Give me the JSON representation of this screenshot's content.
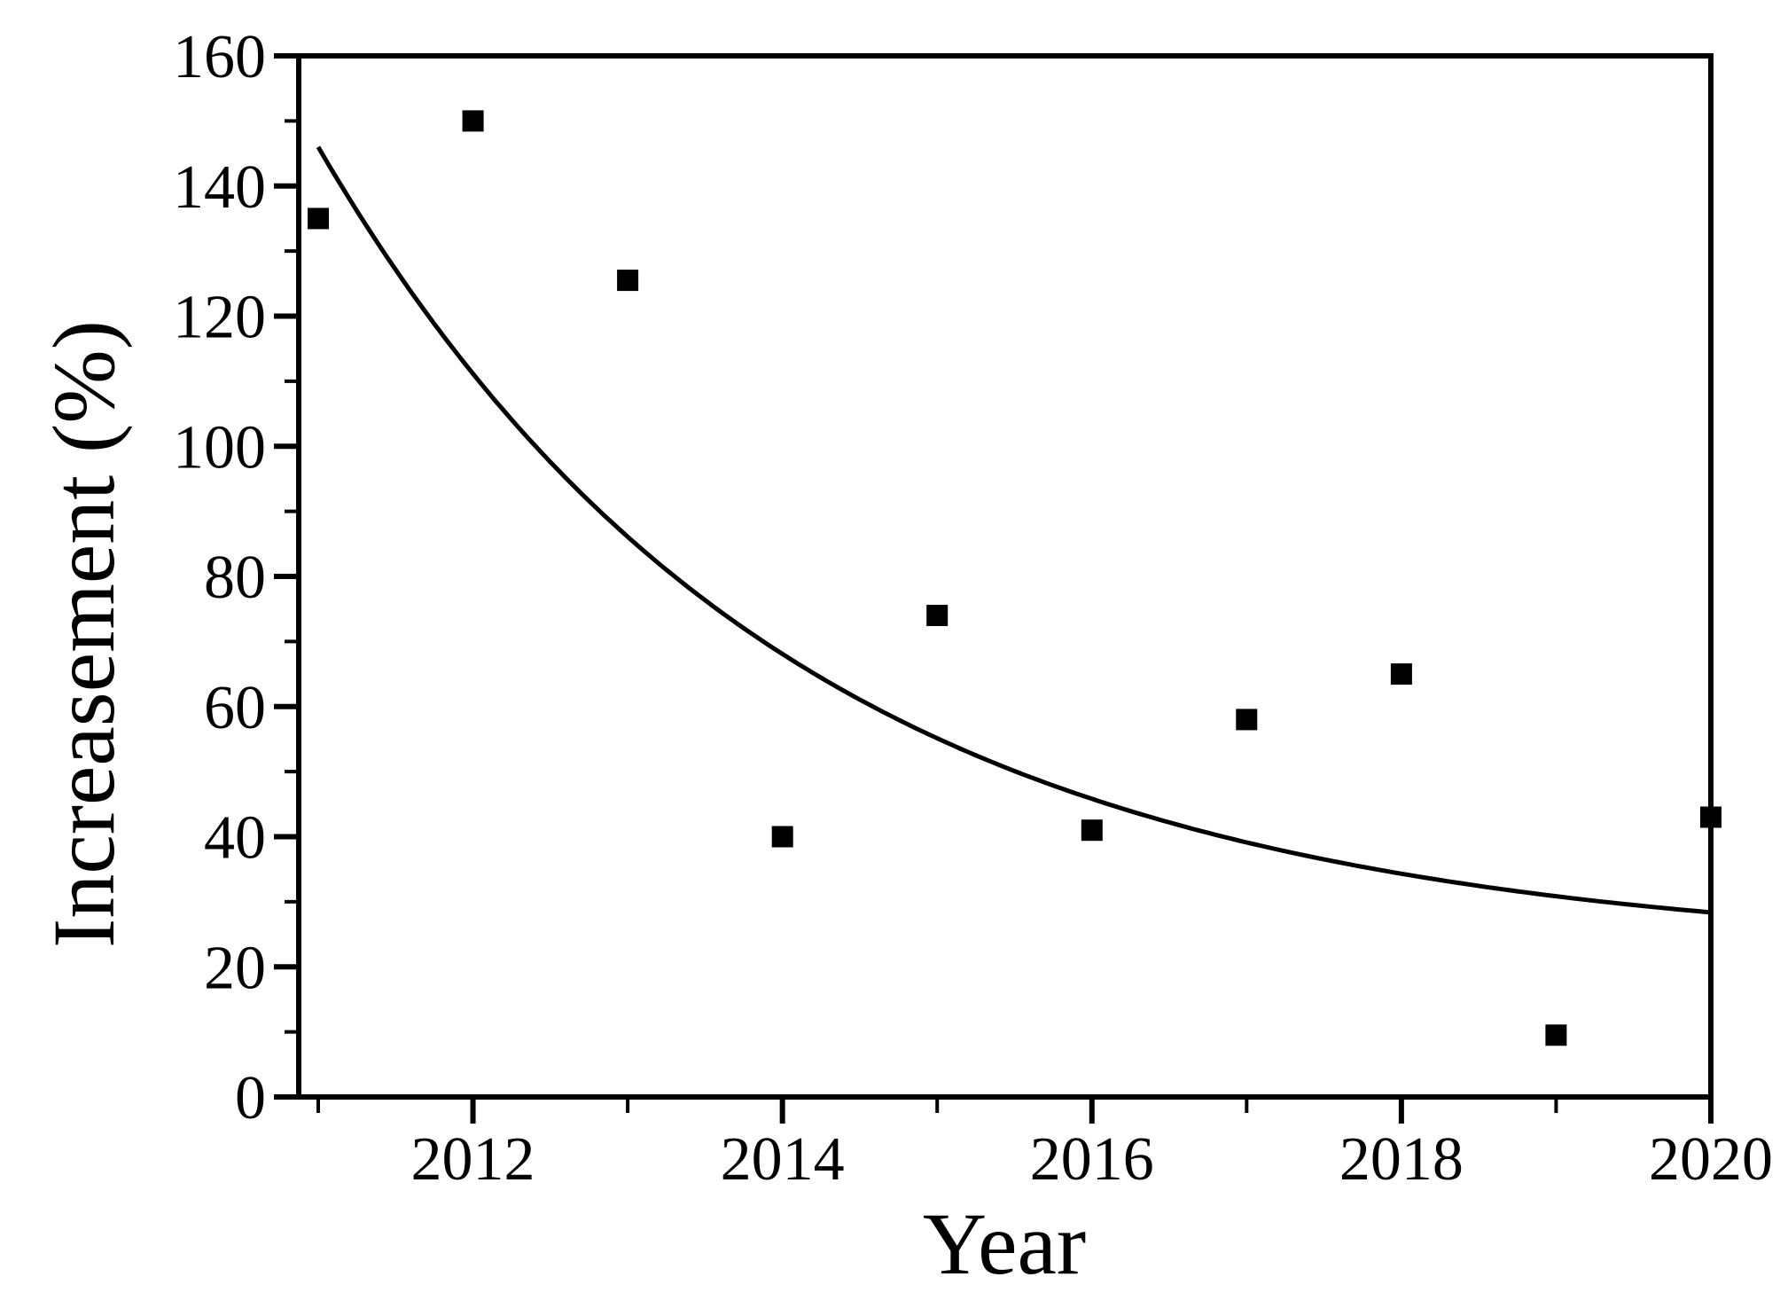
{
  "page": {
    "background_color": "#ffffff",
    "foreground_color": "#000000"
  },
  "chart_data": {
    "type": "scatter",
    "title": "",
    "xlabel": "Year",
    "ylabel": "Increasement (%)",
    "x": [
      2011,
      2012,
      2013,
      2014,
      2015,
      2016,
      2017,
      2018,
      2019,
      2020
    ],
    "series": [
      {
        "name": "increasement-data-points",
        "type": "scatter",
        "marker": "filled-square",
        "marker_color": "#000000",
        "x": [
          2011,
          2012,
          2013,
          2014,
          2015,
          2016,
          2017,
          2018,
          2019,
          2020
        ],
        "y": [
          135,
          150,
          125.5,
          40,
          74,
          41,
          58,
          65,
          9.5,
          43
        ]
      },
      {
        "name": "exponential-fit-curve",
        "type": "line",
        "line_color": "#000000",
        "model": "y = A + B * exp(-k * (x - x0))",
        "A": 22,
        "B": 124,
        "k": 0.33,
        "x0": 2011,
        "x_range": [
          2011,
          2020
        ],
        "y_at_start": 146,
        "y_at_end": 28.3
      }
    ],
    "xlim": [
      2010.874,
      2020
    ],
    "ylim": [
      0,
      160
    ],
    "x_major_ticks": [
      2012,
      2014,
      2016,
      2018,
      2020
    ],
    "x_minor_ticks": [
      2011,
      2013,
      2015,
      2017,
      2019
    ],
    "y_major_ticks": [
      0,
      20,
      40,
      60,
      80,
      100,
      120,
      140,
      160
    ],
    "y_minor_tick_step": 10,
    "grid": false,
    "legend": false,
    "frame": "full-box",
    "frame_color": "#000000"
  }
}
